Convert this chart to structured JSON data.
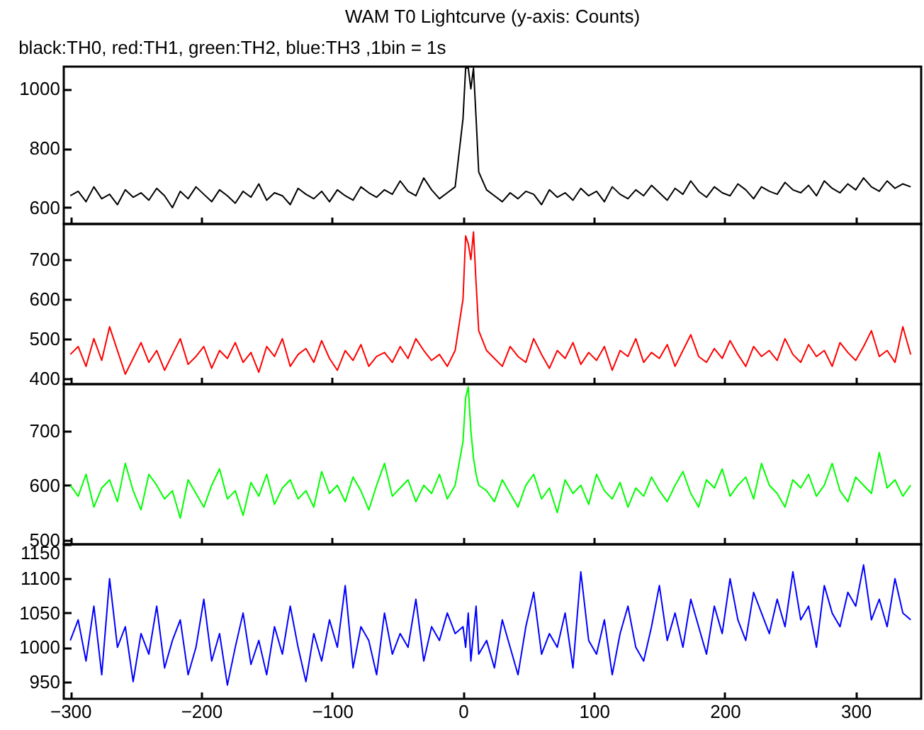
{
  "chart_data": [
    {
      "type": "line",
      "title": "WAM T0 Lightcurve (y-axis: Counts)",
      "subtitle": "black:TH0, red:TH1, green:TH2, blue:TH3 ,1bin = 1s",
      "tick_labels": "y",
      "grid": false,
      "xlim": [
        -305,
        350
      ],
      "xticks": [
        -300,
        -200,
        -100,
        0,
        100,
        200,
        300
      ],
      "ylim": [
        545,
        1075
      ],
      "yticks": [
        600,
        800,
        1000
      ],
      "x": [
        -300,
        -294,
        -288,
        -282,
        -276,
        -270,
        -264,
        -258,
        -252,
        -246,
        -240,
        -234,
        -228,
        -222,
        -216,
        -210,
        -204,
        -198,
        -192,
        -186,
        -180,
        -174,
        -168,
        -162,
        -156,
        -150,
        -144,
        -138,
        -132,
        -126,
        -120,
        -114,
        -108,
        -102,
        -96,
        -90,
        -84,
        -78,
        -72,
        -66,
        -60,
        -54,
        -48,
        -42,
        -36,
        -30,
        -24,
        -18,
        -12,
        -6,
        0,
        2,
        4,
        6,
        8,
        10,
        12,
        18,
        24,
        30,
        36,
        42,
        48,
        54,
        60,
        66,
        72,
        78,
        84,
        90,
        96,
        102,
        108,
        114,
        120,
        126,
        132,
        138,
        144,
        150,
        156,
        162,
        168,
        174,
        180,
        186,
        192,
        198,
        204,
        210,
        216,
        222,
        228,
        234,
        240,
        246,
        252,
        258,
        264,
        270,
        276,
        282,
        288,
        294,
        300,
        306,
        312,
        318,
        324,
        330,
        336,
        342
      ],
      "series": [
        {
          "color": "#000000",
          "values": [
            640,
            655,
            620,
            670,
            630,
            645,
            610,
            660,
            635,
            650,
            625,
            665,
            640,
            600,
            655,
            630,
            670,
            645,
            620,
            660,
            640,
            615,
            655,
            635,
            680,
            625,
            650,
            640,
            610,
            665,
            645,
            630,
            655,
            620,
            660,
            640,
            625,
            670,
            650,
            635,
            660,
            645,
            690,
            655,
            640,
            700,
            660,
            630,
            650,
            670,
            900,
            1070,
            1070,
            1000,
            1070,
            900,
            720,
            660,
            640,
            620,
            650,
            630,
            655,
            645,
            610,
            660,
            635,
            650,
            625,
            665,
            640,
            655,
            620,
            670,
            645,
            630,
            660,
            640,
            675,
            650,
            625,
            665,
            645,
            690,
            655,
            635,
            670,
            650,
            640,
            680,
            660,
            630,
            670,
            655,
            645,
            685,
            660,
            650,
            675,
            640,
            690,
            665,
            650,
            680,
            660,
            700,
            670,
            655,
            690,
            665,
            680,
            670
          ]
        }
      ]
    },
    {
      "type": "line",
      "tick_labels": "y",
      "grid": false,
      "xlim": [
        -305,
        350
      ],
      "xticks": [
        -300,
        -200,
        -100,
        0,
        100,
        200,
        300
      ],
      "ylim": [
        385,
        790
      ],
      "yticks": [
        400,
        500,
        600,
        700
      ],
      "x": [
        -300,
        -294,
        -288,
        -282,
        -276,
        -270,
        -264,
        -258,
        -252,
        -246,
        -240,
        -234,
        -228,
        -222,
        -216,
        -210,
        -204,
        -198,
        -192,
        -186,
        -180,
        -174,
        -168,
        -162,
        -156,
        -150,
        -144,
        -138,
        -132,
        -126,
        -120,
        -114,
        -108,
        -102,
        -96,
        -90,
        -84,
        -78,
        -72,
        -66,
        -60,
        -54,
        -48,
        -42,
        -36,
        -30,
        -24,
        -18,
        -12,
        -6,
        0,
        2,
        4,
        6,
        8,
        10,
        12,
        18,
        24,
        30,
        36,
        42,
        48,
        54,
        60,
        66,
        72,
        78,
        84,
        90,
        96,
        102,
        108,
        114,
        120,
        126,
        132,
        138,
        144,
        150,
        156,
        162,
        168,
        174,
        180,
        186,
        192,
        198,
        204,
        210,
        216,
        222,
        228,
        234,
        240,
        246,
        252,
        258,
        264,
        270,
        276,
        282,
        288,
        294,
        300,
        306,
        312,
        318,
        324,
        330,
        336,
        342
      ],
      "series": [
        {
          "color": "#ff0000",
          "values": [
            460,
            480,
            430,
            500,
            445,
            530,
            470,
            410,
            450,
            490,
            440,
            470,
            420,
            460,
            500,
            435,
            455,
            480,
            425,
            470,
            450,
            490,
            440,
            465,
            415,
            480,
            455,
            500,
            430,
            460,
            475,
            440,
            495,
            450,
            420,
            470,
            445,
            485,
            430,
            455,
            465,
            440,
            480,
            450,
            500,
            470,
            445,
            460,
            430,
            470,
            600,
            760,
            740,
            700,
            770,
            640,
            520,
            470,
            450,
            430,
            480,
            455,
            440,
            500,
            460,
            425,
            470,
            450,
            490,
            435,
            465,
            445,
            480,
            420,
            470,
            455,
            500,
            440,
            465,
            450,
            485,
            430,
            470,
            510,
            455,
            440,
            475,
            450,
            495,
            460,
            430,
            480,
            455,
            470,
            445,
            500,
            460,
            440,
            485,
            455,
            470,
            430,
            490,
            465,
            445,
            480,
            520,
            455,
            470,
            440,
            530,
            460
          ]
        }
      ]
    },
    {
      "type": "line",
      "tick_labels": "y",
      "grid": false,
      "xlim": [
        -305,
        350
      ],
      "xticks": [
        -300,
        -200,
        -100,
        0,
        100,
        200,
        300
      ],
      "ylim": [
        492,
        785
      ],
      "yticks": [
        500,
        600,
        700
      ],
      "x": [
        -300,
        -294,
        -288,
        -282,
        -276,
        -270,
        -264,
        -258,
        -252,
        -246,
        -240,
        -234,
        -228,
        -222,
        -216,
        -210,
        -204,
        -198,
        -192,
        -186,
        -180,
        -174,
        -168,
        -162,
        -156,
        -150,
        -144,
        -138,
        -132,
        -126,
        -120,
        -114,
        -108,
        -102,
        -96,
        -90,
        -84,
        -78,
        -72,
        -66,
        -60,
        -54,
        -48,
        -42,
        -36,
        -30,
        -24,
        -18,
        -12,
        -6,
        0,
        2,
        4,
        6,
        8,
        10,
        12,
        18,
        24,
        30,
        36,
        42,
        48,
        54,
        60,
        66,
        72,
        78,
        84,
        90,
        96,
        102,
        108,
        114,
        120,
        126,
        132,
        138,
        144,
        150,
        156,
        162,
        168,
        174,
        180,
        186,
        192,
        198,
        204,
        210,
        216,
        222,
        228,
        234,
        240,
        246,
        252,
        258,
        264,
        270,
        276,
        282,
        288,
        294,
        300,
        306,
        312,
        318,
        324,
        330,
        336,
        342
      ],
      "series": [
        {
          "color": "#00ff00",
          "values": [
            600,
            580,
            620,
            560,
            595,
            610,
            570,
            640,
            590,
            555,
            620,
            600,
            575,
            590,
            540,
            610,
            585,
            560,
            600,
            630,
            575,
            590,
            545,
            605,
            580,
            620,
            565,
            595,
            610,
            575,
            590,
            560,
            625,
            585,
            600,
            570,
            615,
            590,
            555,
            600,
            640,
            580,
            595,
            610,
            570,
            600,
            585,
            620,
            575,
            600,
            680,
            760,
            780,
            700,
            650,
            620,
            600,
            590,
            570,
            610,
            585,
            560,
            600,
            620,
            575,
            595,
            550,
            610,
            585,
            600,
            565,
            620,
            590,
            575,
            605,
            560,
            595,
            580,
            615,
            590,
            570,
            600,
            625,
            585,
            560,
            610,
            595,
            630,
            580,
            600,
            615,
            575,
            640,
            600,
            585,
            560,
            610,
            595,
            620,
            580,
            600,
            640,
            590,
            570,
            615,
            600,
            585,
            660,
            595,
            610,
            580,
            600
          ]
        }
      ]
    },
    {
      "type": "line",
      "grid": false,
      "xlim": [
        -305,
        350
      ],
      "xticks": [
        -300,
        -200,
        -100,
        0,
        100,
        200,
        300
      ],
      "ylim": [
        925,
        1150
      ],
      "yticks": [
        950,
        1000,
        1050,
        1100,
        1150
      ],
      "x": [
        -300,
        -294,
        -288,
        -282,
        -276,
        -270,
        -264,
        -258,
        -252,
        -246,
        -240,
        -234,
        -228,
        -222,
        -216,
        -210,
        -204,
        -198,
        -192,
        -186,
        -180,
        -174,
        -168,
        -162,
        -156,
        -150,
        -144,
        -138,
        -132,
        -126,
        -120,
        -114,
        -108,
        -102,
        -96,
        -90,
        -84,
        -78,
        -72,
        -66,
        -60,
        -54,
        -48,
        -42,
        -36,
        -30,
        -24,
        -18,
        -12,
        -6,
        0,
        2,
        4,
        6,
        8,
        10,
        12,
        18,
        24,
        30,
        36,
        42,
        48,
        54,
        60,
        66,
        72,
        78,
        84,
        90,
        96,
        102,
        108,
        114,
        120,
        126,
        132,
        138,
        144,
        150,
        156,
        162,
        168,
        174,
        180,
        186,
        192,
        198,
        204,
        210,
        216,
        222,
        228,
        234,
        240,
        246,
        252,
        258,
        264,
        270,
        276,
        282,
        288,
        294,
        300,
        306,
        312,
        318,
        324,
        330,
        336,
        342
      ],
      "series": [
        {
          "color": "#0000ff",
          "values": [
            1010,
            1040,
            980,
            1060,
            960,
            1100,
            1000,
            1030,
            950,
            1020,
            990,
            1060,
            970,
            1010,
            1040,
            960,
            1000,
            1070,
            980,
            1020,
            945,
            1000,
            1050,
            975,
            1010,
            960,
            1030,
            990,
            1060,
            1000,
            950,
            1020,
            980,
            1040,
            1000,
            1090,
            970,
            1030,
            1010,
            960,
            1050,
            990,
            1020,
            1000,
            1070,
            980,
            1030,
            1010,
            1050,
            1020,
            1030,
            1000,
            1050,
            980,
            1020,
            1060,
            990,
            1010,
            970,
            1040,
            1000,
            960,
            1030,
            1080,
            990,
            1020,
            1000,
            1050,
            970,
            1110,
            1010,
            990,
            1040,
            960,
            1020,
            1060,
            1000,
            980,
            1030,
            1090,
            1010,
            1050,
            1000,
            1070,
            1030,
            990,
            1060,
            1020,
            1100,
            1040,
            1010,
            1080,
            1050,
            1020,
            1070,
            1030,
            1110,
            1040,
            1060,
            1000,
            1090,
            1050,
            1030,
            1080,
            1060,
            1120,
            1040,
            1070,
            1030,
            1100,
            1050,
            1040
          ]
        }
      ]
    }
  ]
}
